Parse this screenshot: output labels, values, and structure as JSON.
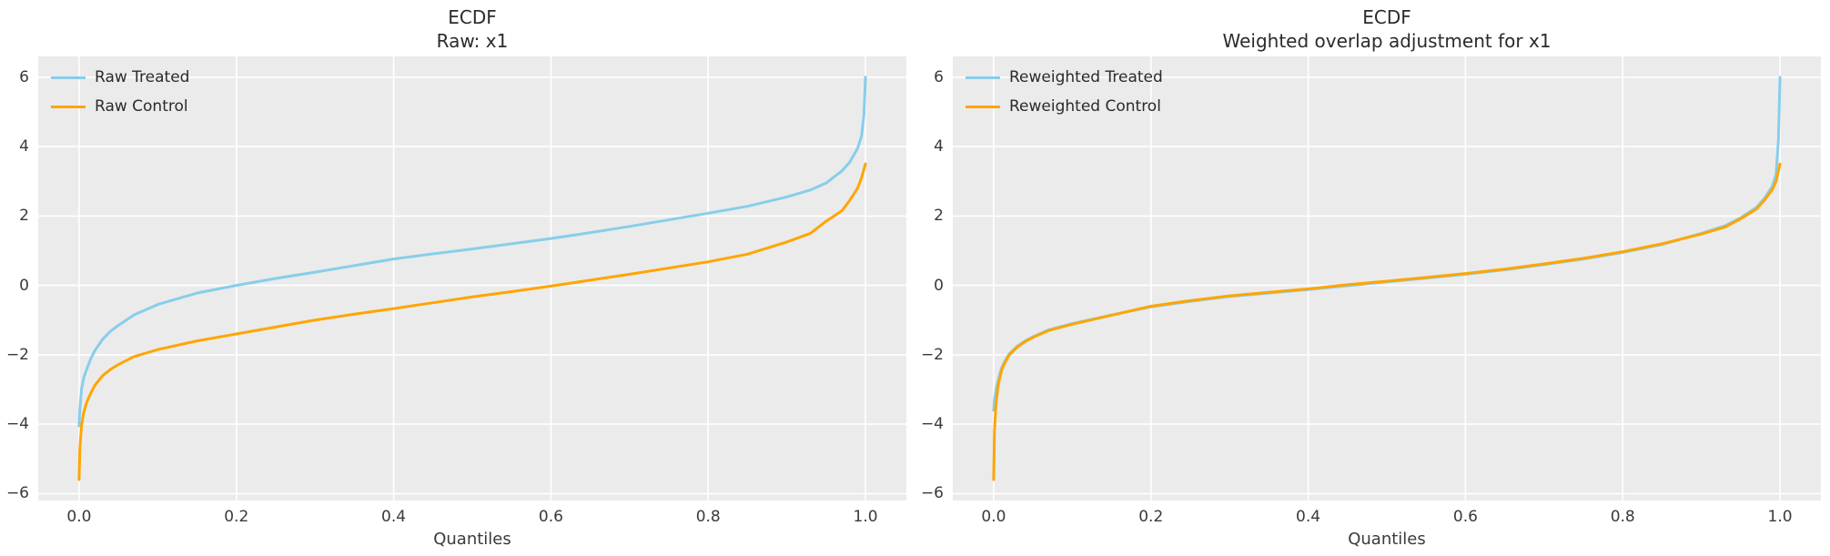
{
  "colors": {
    "figure_background": "#ffffff",
    "axes_background": "#ebebeb",
    "gridline": "#ffffff",
    "tick_text": "#3a3a3a",
    "title_text": "#2b2b2b",
    "treated": "#87ceeb",
    "control": "#ffa500"
  },
  "chart_data": [
    {
      "type": "line",
      "title": "ECDF",
      "subtitle": "Raw: x1",
      "xlabel": "Quantiles",
      "ylabel": "",
      "xlim": [
        -0.052,
        1.052
      ],
      "ylim": [
        -6.2,
        6.6
      ],
      "grid": true,
      "legend_position": "upper left",
      "x_ticks": [
        {
          "value": 0.0,
          "label": "0.0"
        },
        {
          "value": 0.2,
          "label": "0.2"
        },
        {
          "value": 0.4,
          "label": "0.4"
        },
        {
          "value": 0.6,
          "label": "0.6"
        },
        {
          "value": 0.8,
          "label": "0.8"
        },
        {
          "value": 1.0,
          "label": "1.0"
        }
      ],
      "y_ticks": [
        {
          "value": 6,
          "label": "6"
        },
        {
          "value": 4,
          "label": "4"
        },
        {
          "value": 2,
          "label": "2"
        },
        {
          "value": 0,
          "label": "0"
        },
        {
          "value": -2,
          "label": "−2"
        },
        {
          "value": -4,
          "label": "−4"
        },
        {
          "value": -6,
          "label": "−6"
        }
      ],
      "series": [
        {
          "name": "Raw Treated",
          "color": "#87ceeb",
          "points": [
            [
              0.0,
              -4.05
            ],
            [
              0.001,
              -3.55
            ],
            [
              0.003,
              -3.0
            ],
            [
              0.006,
              -2.65
            ],
            [
              0.01,
              -2.4
            ],
            [
              0.015,
              -2.1
            ],
            [
              0.02,
              -1.88
            ],
            [
              0.03,
              -1.55
            ],
            [
              0.04,
              -1.32
            ],
            [
              0.05,
              -1.15
            ],
            [
              0.07,
              -0.85
            ],
            [
              0.1,
              -0.55
            ],
            [
              0.15,
              -0.22
            ],
            [
              0.2,
              0.0
            ],
            [
              0.25,
              0.2
            ],
            [
              0.3,
              0.38
            ],
            [
              0.35,
              0.57
            ],
            [
              0.4,
              0.76
            ],
            [
              0.45,
              0.91
            ],
            [
              0.5,
              1.05
            ],
            [
              0.55,
              1.2
            ],
            [
              0.6,
              1.35
            ],
            [
              0.65,
              1.52
            ],
            [
              0.7,
              1.7
            ],
            [
              0.75,
              1.89
            ],
            [
              0.8,
              2.08
            ],
            [
              0.85,
              2.28
            ],
            [
              0.9,
              2.55
            ],
            [
              0.93,
              2.75
            ],
            [
              0.95,
              2.95
            ],
            [
              0.97,
              3.3
            ],
            [
              0.98,
              3.55
            ],
            [
              0.99,
              3.95
            ],
            [
              0.995,
              4.3
            ],
            [
              0.998,
              4.9
            ],
            [
              1.0,
              6.0
            ]
          ]
        },
        {
          "name": "Raw Control",
          "color": "#ffa500",
          "points": [
            [
              0.0,
              -5.6
            ],
            [
              0.001,
              -4.7
            ],
            [
              0.003,
              -4.05
            ],
            [
              0.006,
              -3.65
            ],
            [
              0.01,
              -3.35
            ],
            [
              0.015,
              -3.1
            ],
            [
              0.02,
              -2.88
            ],
            [
              0.03,
              -2.6
            ],
            [
              0.04,
              -2.42
            ],
            [
              0.05,
              -2.28
            ],
            [
              0.07,
              -2.05
            ],
            [
              0.1,
              -1.85
            ],
            [
              0.15,
              -1.6
            ],
            [
              0.2,
              -1.4
            ],
            [
              0.25,
              -1.2
            ],
            [
              0.3,
              -1.0
            ],
            [
              0.35,
              -0.83
            ],
            [
              0.4,
              -0.67
            ],
            [
              0.45,
              -0.5
            ],
            [
              0.5,
              -0.33
            ],
            [
              0.55,
              -0.18
            ],
            [
              0.6,
              -0.02
            ],
            [
              0.65,
              0.15
            ],
            [
              0.7,
              0.32
            ],
            [
              0.75,
              0.5
            ],
            [
              0.8,
              0.68
            ],
            [
              0.85,
              0.9
            ],
            [
              0.9,
              1.25
            ],
            [
              0.93,
              1.5
            ],
            [
              0.95,
              1.85
            ],
            [
              0.97,
              2.15
            ],
            [
              0.98,
              2.45
            ],
            [
              0.99,
              2.8
            ],
            [
              0.995,
              3.1
            ],
            [
              1.0,
              3.5
            ]
          ]
        }
      ]
    },
    {
      "type": "line",
      "title": "ECDF",
      "subtitle": "Weighted overlap adjustment for x1",
      "xlabel": "Quantiles",
      "ylabel": "",
      "xlim": [
        -0.052,
        1.052
      ],
      "ylim": [
        -6.2,
        6.6
      ],
      "grid": true,
      "legend_position": "upper left",
      "x_ticks": [
        {
          "value": 0.0,
          "label": "0.0"
        },
        {
          "value": 0.2,
          "label": "0.2"
        },
        {
          "value": 0.4,
          "label": "0.4"
        },
        {
          "value": 0.6,
          "label": "0.6"
        },
        {
          "value": 0.8,
          "label": "0.8"
        },
        {
          "value": 1.0,
          "label": "1.0"
        }
      ],
      "y_ticks": [
        {
          "value": 6,
          "label": "6"
        },
        {
          "value": 4,
          "label": "4"
        },
        {
          "value": 2,
          "label": "2"
        },
        {
          "value": 0,
          "label": "0"
        },
        {
          "value": -2,
          "label": "−2"
        },
        {
          "value": -4,
          "label": "−4"
        },
        {
          "value": -6,
          "label": "−6"
        }
      ],
      "series": [
        {
          "name": "Reweighted Treated",
          "color": "#87ceeb",
          "points": [
            [
              0.0,
              -3.6
            ],
            [
              0.001,
              -3.3
            ],
            [
              0.003,
              -3.0
            ],
            [
              0.006,
              -2.7
            ],
            [
              0.01,
              -2.38
            ],
            [
              0.015,
              -2.15
            ],
            [
              0.02,
              -1.97
            ],
            [
              0.03,
              -1.75
            ],
            [
              0.04,
              -1.6
            ],
            [
              0.05,
              -1.48
            ],
            [
              0.07,
              -1.28
            ],
            [
              0.1,
              -1.1
            ],
            [
              0.15,
              -0.85
            ],
            [
              0.2,
              -0.62
            ],
            [
              0.25,
              -0.46
            ],
            [
              0.3,
              -0.32
            ],
            [
              0.35,
              -0.22
            ],
            [
              0.4,
              -0.12
            ],
            [
              0.45,
              -0.01
            ],
            [
              0.5,
              0.1
            ],
            [
              0.55,
              0.21
            ],
            [
              0.6,
              0.32
            ],
            [
              0.65,
              0.45
            ],
            [
              0.7,
              0.6
            ],
            [
              0.75,
              0.76
            ],
            [
              0.8,
              0.95
            ],
            [
              0.85,
              1.18
            ],
            [
              0.9,
              1.5
            ],
            [
              0.93,
              1.72
            ],
            [
              0.95,
              1.95
            ],
            [
              0.97,
              2.25
            ],
            [
              0.98,
              2.5
            ],
            [
              0.99,
              2.85
            ],
            [
              0.995,
              3.2
            ],
            [
              0.998,
              4.2
            ],
            [
              1.0,
              6.0
            ]
          ]
        },
        {
          "name": "Reweighted Control",
          "color": "#ffa500",
          "points": [
            [
              0.0,
              -5.6
            ],
            [
              0.001,
              -4.2
            ],
            [
              0.003,
              -3.4
            ],
            [
              0.006,
              -2.85
            ],
            [
              0.01,
              -2.45
            ],
            [
              0.015,
              -2.2
            ],
            [
              0.02,
              -2.0
            ],
            [
              0.03,
              -1.78
            ],
            [
              0.04,
              -1.62
            ],
            [
              0.05,
              -1.5
            ],
            [
              0.07,
              -1.3
            ],
            [
              0.1,
              -1.12
            ],
            [
              0.15,
              -0.86
            ],
            [
              0.2,
              -0.6
            ],
            [
              0.25,
              -0.44
            ],
            [
              0.3,
              -0.3
            ],
            [
              0.35,
              -0.2
            ],
            [
              0.4,
              -0.1
            ],
            [
              0.45,
              0.02
            ],
            [
              0.5,
              0.12
            ],
            [
              0.55,
              0.23
            ],
            [
              0.6,
              0.34
            ],
            [
              0.65,
              0.47
            ],
            [
              0.7,
              0.62
            ],
            [
              0.75,
              0.78
            ],
            [
              0.8,
              0.97
            ],
            [
              0.85,
              1.2
            ],
            [
              0.9,
              1.48
            ],
            [
              0.93,
              1.68
            ],
            [
              0.95,
              1.92
            ],
            [
              0.97,
              2.2
            ],
            [
              0.98,
              2.45
            ],
            [
              0.99,
              2.75
            ],
            [
              0.995,
              3.0
            ],
            [
              1.0,
              3.5
            ]
          ]
        }
      ]
    }
  ]
}
